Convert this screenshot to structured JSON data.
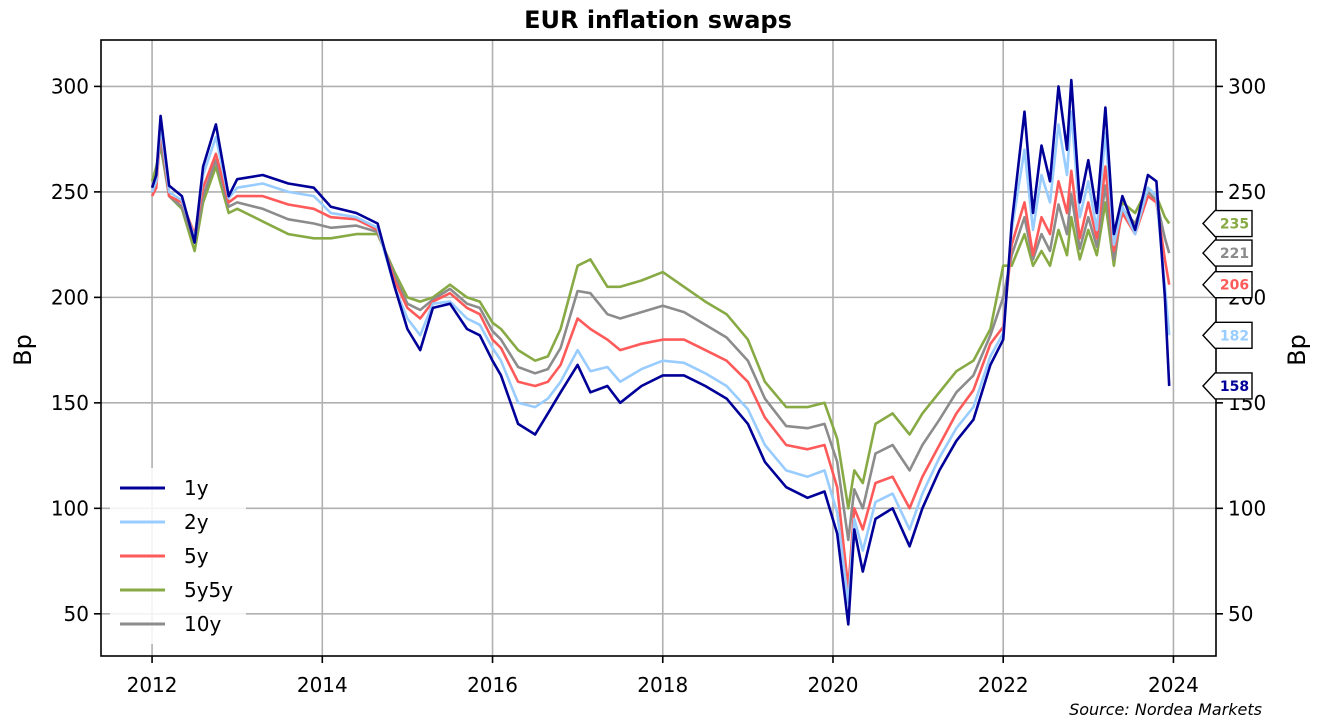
{
  "chart_data": {
    "type": "line",
    "title": "EUR inflation swaps",
    "ylabel_left": "Bp",
    "ylabel_right": "Bp",
    "xlabel": "",
    "source": "Source: Nordea Markets",
    "xlim": [
      2011.4,
      2024.5
    ],
    "ylim": [
      30,
      322
    ],
    "x_ticks": [
      2012,
      2014,
      2016,
      2018,
      2020,
      2022,
      2024
    ],
    "x_tick_labels": [
      "2012",
      "2014",
      "2016",
      "2018",
      "2020",
      "2022",
      "2024"
    ],
    "y_ticks": [
      50,
      100,
      150,
      200,
      250,
      300
    ],
    "y_tick_labels": [
      "50",
      "100",
      "150",
      "200",
      "250",
      "300"
    ],
    "grid": true,
    "legend_position": "bottom-left",
    "series": [
      {
        "name": "1y",
        "color": "#000099",
        "end_label": "158",
        "x": [
          2012.0,
          2012.05,
          2012.1,
          2012.2,
          2012.35,
          2012.5,
          2012.6,
          2012.75,
          2012.9,
          2013.0,
          2013.3,
          2013.6,
          2013.9,
          2014.1,
          2014.4,
          2014.65,
          2014.85,
          2015.0,
          2015.15,
          2015.3,
          2015.5,
          2015.7,
          2015.85,
          2016.0,
          2016.1,
          2016.3,
          2016.5,
          2016.65,
          2016.8,
          2017.0,
          2017.15,
          2017.35,
          2017.5,
          2017.75,
          2018.0,
          2018.25,
          2018.5,
          2018.75,
          2019.0,
          2019.2,
          2019.45,
          2019.7,
          2019.9,
          2020.05,
          2020.18,
          2020.25,
          2020.35,
          2020.5,
          2020.7,
          2020.9,
          2021.05,
          2021.25,
          2021.45,
          2021.65,
          2021.85,
          2022.0,
          2022.1,
          2022.25,
          2022.35,
          2022.45,
          2022.55,
          2022.65,
          2022.75,
          2022.8,
          2022.9,
          2023.0,
          2023.1,
          2023.2,
          2023.3,
          2023.4,
          2023.55,
          2023.7,
          2023.8,
          2023.9,
          2023.95
        ],
        "values": [
          252,
          258,
          286,
          253,
          248,
          226,
          262,
          282,
          248,
          256,
          258,
          254,
          252,
          243,
          240,
          235,
          205,
          185,
          175,
          195,
          197,
          185,
          182,
          170,
          163,
          140,
          135,
          145,
          155,
          168,
          155,
          158,
          150,
          158,
          163,
          163,
          158,
          152,
          140,
          122,
          110,
          105,
          108,
          88,
          45,
          90,
          70,
          95,
          100,
          82,
          100,
          118,
          132,
          142,
          168,
          180,
          235,
          288,
          240,
          272,
          255,
          300,
          270,
          303,
          245,
          265,
          240,
          290,
          230,
          248,
          232,
          258,
          255,
          200,
          158
        ]
      },
      {
        "name": "2y",
        "color": "#99ccff",
        "end_label": "182",
        "x": [
          2012.0,
          2012.05,
          2012.1,
          2012.2,
          2012.35,
          2012.5,
          2012.6,
          2012.75,
          2012.9,
          2013.0,
          2013.3,
          2013.6,
          2013.9,
          2014.1,
          2014.4,
          2014.65,
          2014.85,
          2015.0,
          2015.15,
          2015.3,
          2015.5,
          2015.7,
          2015.85,
          2016.0,
          2016.1,
          2016.3,
          2016.5,
          2016.65,
          2016.8,
          2017.0,
          2017.15,
          2017.35,
          2017.5,
          2017.75,
          2018.0,
          2018.25,
          2018.5,
          2018.75,
          2019.0,
          2019.2,
          2019.45,
          2019.7,
          2019.9,
          2020.05,
          2020.18,
          2020.25,
          2020.35,
          2020.5,
          2020.7,
          2020.9,
          2021.05,
          2021.25,
          2021.45,
          2021.65,
          2021.85,
          2022.0,
          2022.1,
          2022.25,
          2022.35,
          2022.45,
          2022.55,
          2022.65,
          2022.75,
          2022.8,
          2022.9,
          2023.0,
          2023.1,
          2023.2,
          2023.3,
          2023.4,
          2023.55,
          2023.7,
          2023.8,
          2023.9,
          2023.95
        ],
        "values": [
          250,
          255,
          282,
          250,
          246,
          228,
          258,
          276,
          247,
          252,
          254,
          250,
          248,
          240,
          238,
          233,
          205,
          190,
          182,
          197,
          198,
          190,
          187,
          176,
          170,
          150,
          148,
          152,
          160,
          175,
          165,
          167,
          160,
          166,
          170,
          169,
          164,
          158,
          147,
          130,
          118,
          115,
          118,
          98,
          55,
          95,
          80,
          103,
          107,
          90,
          107,
          124,
          138,
          148,
          172,
          183,
          232,
          270,
          232,
          258,
          245,
          282,
          258,
          288,
          238,
          255,
          232,
          278,
          225,
          243,
          230,
          252,
          248,
          205,
          182
        ]
      },
      {
        "name": "5y",
        "color": "#ff5a5a",
        "end_label": "206",
        "x": [
          2012.0,
          2012.05,
          2012.1,
          2012.2,
          2012.35,
          2012.5,
          2012.6,
          2012.75,
          2012.9,
          2013.0,
          2013.3,
          2013.6,
          2013.9,
          2014.1,
          2014.4,
          2014.65,
          2014.85,
          2015.0,
          2015.15,
          2015.3,
          2015.5,
          2015.7,
          2015.85,
          2016.0,
          2016.1,
          2016.3,
          2016.5,
          2016.65,
          2016.8,
          2017.0,
          2017.15,
          2017.35,
          2017.5,
          2017.75,
          2018.0,
          2018.25,
          2018.5,
          2018.75,
          2019.0,
          2019.2,
          2019.45,
          2019.7,
          2019.9,
          2020.05,
          2020.18,
          2020.25,
          2020.35,
          2020.5,
          2020.7,
          2020.9,
          2021.05,
          2021.25,
          2021.45,
          2021.65,
          2021.85,
          2022.0,
          2022.1,
          2022.25,
          2022.35,
          2022.45,
          2022.55,
          2022.65,
          2022.75,
          2022.8,
          2022.9,
          2023.0,
          2023.1,
          2023.2,
          2023.3,
          2023.4,
          2023.55,
          2023.7,
          2023.8,
          2023.9,
          2023.95
        ],
        "values": [
          248,
          252,
          280,
          248,
          245,
          230,
          252,
          268,
          245,
          248,
          248,
          244,
          242,
          238,
          237,
          232,
          208,
          195,
          190,
          198,
          202,
          195,
          192,
          180,
          176,
          160,
          158,
          160,
          168,
          190,
          185,
          180,
          175,
          178,
          180,
          180,
          175,
          170,
          160,
          143,
          130,
          128,
          130,
          110,
          62,
          100,
          90,
          112,
          115,
          100,
          115,
          130,
          145,
          156,
          178,
          186,
          225,
          245,
          220,
          238,
          230,
          255,
          240,
          260,
          228,
          245,
          228,
          262,
          222,
          240,
          230,
          248,
          245,
          218,
          206
        ]
      },
      {
        "name": "5y5y",
        "color": "#88aa44",
        "end_label": "235",
        "x": [
          2012.0,
          2012.05,
          2012.1,
          2012.2,
          2012.35,
          2012.5,
          2012.6,
          2012.75,
          2012.9,
          2013.0,
          2013.3,
          2013.6,
          2013.9,
          2014.1,
          2014.4,
          2014.65,
          2014.85,
          2015.0,
          2015.15,
          2015.3,
          2015.5,
          2015.7,
          2015.85,
          2016.0,
          2016.1,
          2016.3,
          2016.5,
          2016.65,
          2016.8,
          2017.0,
          2017.15,
          2017.35,
          2017.5,
          2017.75,
          2018.0,
          2018.25,
          2018.5,
          2018.75,
          2019.0,
          2019.2,
          2019.45,
          2019.7,
          2019.9,
          2020.05,
          2020.18,
          2020.25,
          2020.35,
          2020.5,
          2020.7,
          2020.9,
          2021.05,
          2021.25,
          2021.45,
          2021.65,
          2021.85,
          2022.0,
          2022.1,
          2022.25,
          2022.35,
          2022.45,
          2022.55,
          2022.65,
          2022.75,
          2022.8,
          2022.9,
          2023.0,
          2023.1,
          2023.2,
          2023.3,
          2023.4,
          2023.55,
          2023.7,
          2023.8,
          2023.9,
          2023.95
        ],
        "values": [
          255,
          262,
          272,
          248,
          242,
          222,
          245,
          262,
          240,
          242,
          236,
          230,
          228,
          228,
          230,
          230,
          212,
          200,
          198,
          200,
          206,
          200,
          198,
          188,
          185,
          175,
          170,
          172,
          185,
          215,
          218,
          205,
          205,
          208,
          212,
          205,
          198,
          192,
          180,
          160,
          148,
          148,
          150,
          133,
          100,
          118,
          112,
          140,
          145,
          135,
          145,
          155,
          165,
          170,
          185,
          215,
          215,
          230,
          215,
          222,
          215,
          232,
          220,
          238,
          218,
          232,
          220,
          245,
          215,
          245,
          240,
          252,
          248,
          238,
          235
        ]
      },
      {
        "name": "10y",
        "color": "#8c8c8c",
        "end_label": "221",
        "x": [
          2012.0,
          2012.05,
          2012.1,
          2012.2,
          2012.35,
          2012.5,
          2012.6,
          2012.75,
          2012.9,
          2013.0,
          2013.3,
          2013.6,
          2013.9,
          2014.1,
          2014.4,
          2014.65,
          2014.85,
          2015.0,
          2015.15,
          2015.3,
          2015.5,
          2015.7,
          2015.85,
          2016.0,
          2016.1,
          2016.3,
          2016.5,
          2016.65,
          2016.8,
          2017.0,
          2017.15,
          2017.35,
          2017.5,
          2017.75,
          2018.0,
          2018.25,
          2018.5,
          2018.75,
          2019.0,
          2019.2,
          2019.45,
          2019.7,
          2019.9,
          2020.05,
          2020.18,
          2020.25,
          2020.35,
          2020.5,
          2020.7,
          2020.9,
          2021.05,
          2021.25,
          2021.45,
          2021.65,
          2021.85,
          2022.0,
          2022.1,
          2022.25,
          2022.35,
          2022.45,
          2022.55,
          2022.65,
          2022.75,
          2022.8,
          2022.9,
          2023.0,
          2023.1,
          2023.2,
          2023.3,
          2023.4,
          2023.55,
          2023.7,
          2023.8,
          2023.9,
          2023.95
        ],
        "values": [
          252,
          257,
          275,
          248,
          243,
          226,
          248,
          265,
          243,
          245,
          242,
          237,
          235,
          233,
          234,
          231,
          210,
          197,
          194,
          199,
          204,
          197,
          195,
          184,
          180,
          167,
          164,
          166,
          176,
          203,
          202,
          192,
          190,
          193,
          196,
          193,
          187,
          181,
          170,
          152,
          139,
          138,
          140,
          122,
          85,
          109,
          100,
          126,
          130,
          118,
          130,
          142,
          155,
          163,
          182,
          200,
          220,
          238,
          218,
          230,
          222,
          244,
          230,
          249,
          223,
          238,
          224,
          253,
          218,
          242,
          235,
          250,
          246,
          228,
          221
        ]
      }
    ]
  }
}
